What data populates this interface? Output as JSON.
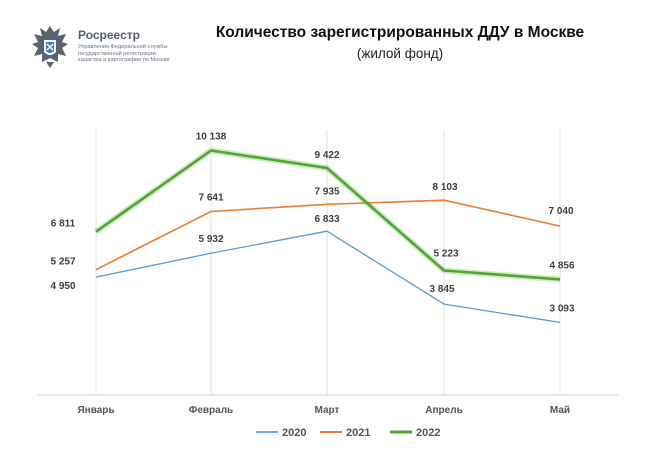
{
  "header": {
    "logo_name": "Росреестр",
    "logo_subtitle_lines": [
      "Управление Федеральной службы",
      "государственной регистрации,",
      "кадастра и картографии по Москве"
    ]
  },
  "chart_data": {
    "type": "line",
    "title": "Количество зарегистрированных ДДУ в Москве",
    "subtitle": "(жилой фонд)",
    "categories": [
      "Январь",
      "Февраль",
      "Март",
      "Апрель",
      "Май"
    ],
    "series": [
      {
        "name": "2020",
        "color": "#5b9bd5",
        "values": [
          4950,
          5932,
          6833,
          3845,
          3093
        ],
        "labels": [
          "4 950",
          "5 932",
          "6 833",
          "3 845",
          "3 093"
        ]
      },
      {
        "name": "2021",
        "color": "#ed7d31",
        "values": [
          5257,
          7641,
          7935,
          8103,
          7040
        ],
        "labels": [
          "5 257",
          "7 641",
          "7 935",
          "8 103",
          "7 040"
        ]
      },
      {
        "name": "2022",
        "color": "#4ea72e",
        "values": [
          6811,
          10138,
          9422,
          5223,
          4856
        ],
        "labels": [
          "6 811",
          "10 138",
          "9 422",
          "5 223",
          "4 856"
        ]
      }
    ],
    "ylim": [
      0,
      11000
    ],
    "grid": "vertical",
    "legend": "bottom"
  }
}
